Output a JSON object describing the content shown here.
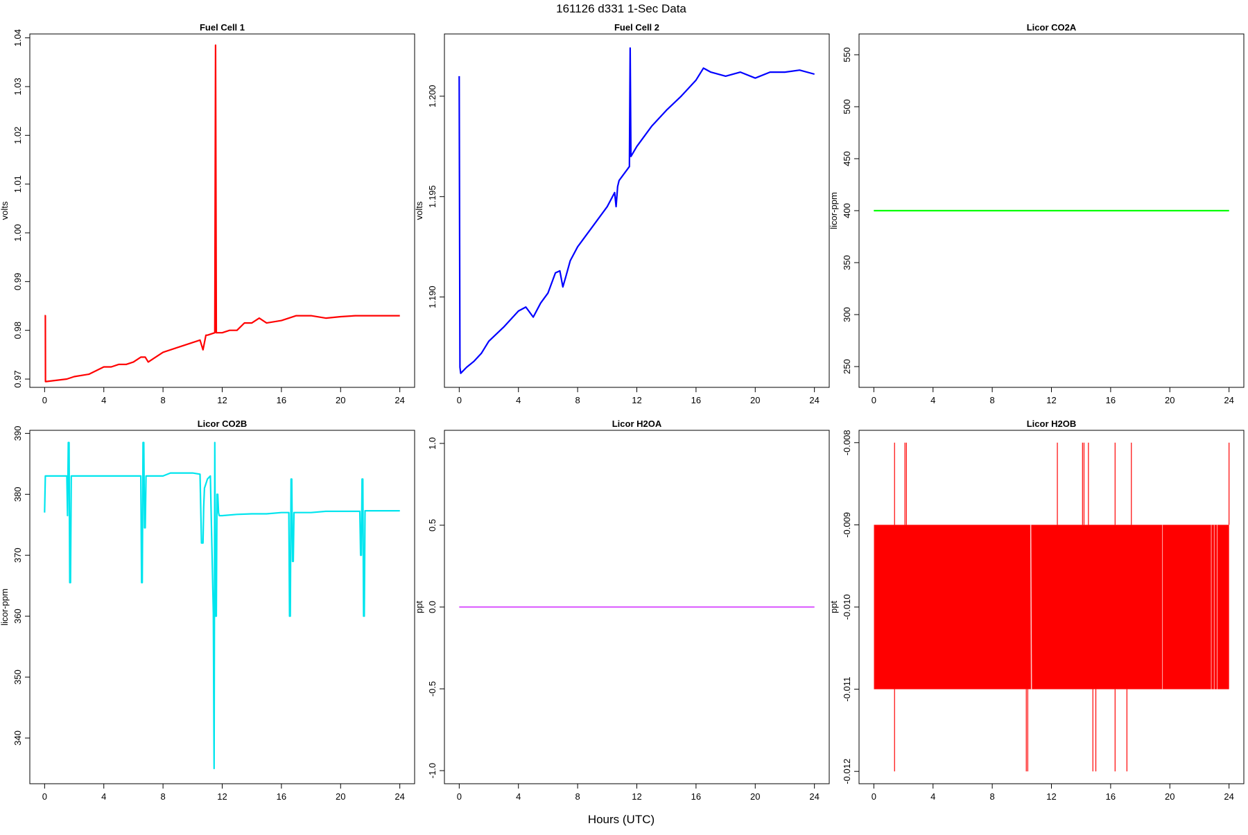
{
  "figure": {
    "title": "161126   d331   1-Sec Data",
    "xlabel": "Hours (UTC)"
  },
  "chart_data": [
    {
      "type": "line",
      "title": "Fuel Cell 1",
      "ylabel": "volts",
      "color": "#ff0000",
      "xlim": [
        -1,
        25
      ],
      "ylim": [
        0.9683,
        1.0408
      ],
      "xticks": [
        0,
        4,
        8,
        12,
        16,
        20,
        24
      ],
      "yticks": [
        0.97,
        0.98,
        0.99,
        1.0,
        1.01,
        1.02,
        1.03,
        1.04
      ],
      "ytick_labels": [
        "0.97",
        "0.98",
        "0.99",
        "1.00",
        "1.01",
        "1.02",
        "1.03",
        "1.04"
      ],
      "series": [
        {
          "x": [
            0,
            0.05,
            0.06,
            0.1,
            1.5,
            2,
            3,
            4,
            4.5,
            5,
            5.5,
            6,
            6.5,
            6.8,
            7,
            7.5,
            8,
            9,
            10,
            10.5,
            10.7,
            10.9,
            11,
            11.5,
            11.55,
            11.6,
            11.65,
            12,
            12.5,
            13,
            13.5,
            14,
            14.5,
            15,
            16,
            16.5,
            17,
            18,
            19,
            20,
            21,
            22,
            23,
            24
          ],
          "y": [
            0.983,
            0.983,
            0.9695,
            0.9695,
            0.97,
            0.9705,
            0.971,
            0.9725,
            0.9725,
            0.973,
            0.973,
            0.9735,
            0.9745,
            0.9745,
            0.9735,
            0.9745,
            0.9755,
            0.9765,
            0.9775,
            0.978,
            0.976,
            0.979,
            0.979,
            0.9795,
            1.0385,
            0.9795,
            0.9795,
            0.9795,
            0.98,
            0.98,
            0.9815,
            0.9815,
            0.9825,
            0.9815,
            0.982,
            0.9825,
            0.983,
            0.983,
            0.9825,
            0.9828,
            0.983,
            0.983,
            0.983,
            0.983
          ]
        }
      ]
    },
    {
      "type": "line",
      "title": "Fuel Cell 2",
      "ylabel": "volts",
      "color": "#0000ff",
      "xlim": [
        -1,
        25
      ],
      "ylim": [
        1.1855,
        1.2031
      ],
      "xticks": [
        0,
        4,
        8,
        12,
        16,
        20,
        24
      ],
      "yticks": [
        1.19,
        1.195,
        1.2
      ],
      "ytick_labels": [
        "1.190",
        "1.195",
        "1.200"
      ],
      "series": [
        {
          "x": [
            0,
            0.05,
            0.1,
            0.5,
            1,
            1.5,
            2,
            3,
            4,
            4.5,
            5,
            5.5,
            6,
            6.5,
            6.8,
            7,
            7.2,
            7.5,
            8,
            9,
            10,
            10.5,
            10.6,
            10.7,
            10.8,
            11,
            11.5,
            11.55,
            11.6,
            12,
            13,
            14,
            15,
            16,
            16.5,
            17,
            18,
            19,
            20,
            21,
            22,
            23,
            24
          ],
          "y": [
            1.201,
            1.1865,
            1.1862,
            1.1865,
            1.1868,
            1.1872,
            1.1878,
            1.1885,
            1.1893,
            1.1895,
            1.189,
            1.1897,
            1.1902,
            1.1912,
            1.1913,
            1.1905,
            1.191,
            1.1918,
            1.1925,
            1.1935,
            1.1945,
            1.1952,
            1.1945,
            1.1955,
            1.1958,
            1.196,
            1.1965,
            1.2024,
            1.197,
            1.1975,
            1.1985,
            1.1993,
            1.2,
            1.2008,
            1.2014,
            1.2012,
            1.201,
            1.2012,
            1.2009,
            1.2012,
            1.2012,
            1.2013,
            1.2011
          ]
        }
      ]
    },
    {
      "type": "line",
      "title": "Licor CO2A",
      "ylabel": "licor-ppm",
      "color": "#00ff00",
      "xlim": [
        -1,
        25
      ],
      "ylim": [
        230,
        570
      ],
      "xticks": [
        0,
        4,
        8,
        12,
        16,
        20,
        24
      ],
      "yticks": [
        250,
        300,
        350,
        400,
        450,
        500,
        550
      ],
      "ytick_labels": [
        "250",
        "300",
        "350",
        "400",
        "450",
        "500",
        "550"
      ],
      "series": [
        {
          "x": [
            0,
            24
          ],
          "y": [
            400,
            400
          ]
        }
      ]
    },
    {
      "type": "line",
      "title": "Licor CO2B",
      "ylabel": "licor-ppm",
      "color": "#00e5ee",
      "xlim": [
        -1,
        25
      ],
      "ylim": [
        332.5,
        390.5
      ],
      "xticks": [
        0,
        4,
        8,
        12,
        16,
        20,
        24
      ],
      "yticks": [
        340,
        350,
        360,
        370,
        380,
        390
      ],
      "ytick_labels": [
        "340",
        "350",
        "360",
        "370",
        "380",
        "390"
      ],
      "series": [
        {
          "x": [
            0,
            0.05,
            0.1,
            1.5,
            1.55,
            1.6,
            1.65,
            1.7,
            1.75,
            1.8,
            1.85,
            1.9,
            2,
            3,
            4,
            5,
            6,
            6.5,
            6.55,
            6.6,
            6.65,
            6.7,
            6.75,
            6.8,
            6.85,
            6.9,
            7,
            8,
            8.5,
            9,
            10,
            10.5,
            10.6,
            10.7,
            10.75,
            10.8,
            11,
            11.2,
            11.4,
            11.45,
            11.5,
            11.55,
            11.6,
            11.65,
            11.7,
            11.75,
            11.8,
            11.85,
            11.9,
            12,
            13,
            14,
            15,
            16,
            16.5,
            16.55,
            16.6,
            16.65,
            16.7,
            16.75,
            16.8,
            16.85,
            16.9,
            17,
            18,
            19,
            20,
            21,
            21.3,
            21.35,
            21.4,
            21.45,
            21.5,
            21.55,
            21.6,
            21.65,
            21.7,
            21.8,
            22,
            23,
            24
          ],
          "y": [
            377,
            383,
            383,
            383,
            376.5,
            388.5,
            388.5,
            365.5,
            365.5,
            383,
            383,
            383,
            383,
            383,
            383,
            383,
            383,
            383,
            365.5,
            365.5,
            388.5,
            388.5,
            374.5,
            374.5,
            383,
            383,
            383,
            383,
            383.5,
            383.5,
            383.5,
            383.3,
            372,
            372,
            378,
            381,
            382.5,
            383,
            360.5,
            335,
            388.5,
            360,
            360,
            380,
            380,
            377,
            376.5,
            376.5,
            376.5,
            376.5,
            376.7,
            376.8,
            376.8,
            377,
            377,
            360,
            360,
            382.5,
            382.5,
            369,
            369,
            377,
            377,
            377,
            377,
            377.2,
            377.2,
            377.2,
            377.2,
            370,
            370,
            382.5,
            382.5,
            360,
            360,
            377.3,
            377.3,
            377.3,
            377.3,
            377.3,
            377.3
          ]
        }
      ]
    },
    {
      "type": "line",
      "title": "Licor H2OA",
      "ylabel": "ppt",
      "color": "#dd66ff",
      "xlim": [
        -1,
        25
      ],
      "ylim": [
        -1.08,
        1.08
      ],
      "xticks": [
        0,
        4,
        8,
        12,
        16,
        20,
        24
      ],
      "yticks": [
        -1.0,
        -0.5,
        0.0,
        0.5,
        1.0
      ],
      "ytick_labels": [
        "-1.0",
        "-0.5",
        "0.0",
        "0.5",
        "1.0"
      ],
      "series": [
        {
          "x": [
            0,
            24
          ],
          "y": [
            0,
            0
          ]
        }
      ]
    },
    {
      "type": "line",
      "title": "Licor H2OB",
      "ylabel": "ppt",
      "color": "#ff0000",
      "xlim": [
        -1,
        25
      ],
      "ylim": [
        -0.01215,
        -0.00785
      ],
      "xticks": [
        0,
        4,
        8,
        12,
        16,
        20,
        24
      ],
      "yticks": [
        -0.012,
        -0.011,
        -0.01,
        -0.009,
        -0.008
      ],
      "ytick_labels": [
        "-0.012",
        "-0.011",
        "-0.010",
        "-0.009",
        "-0.008"
      ],
      "band": {
        "x_start": 0,
        "x_end": 24,
        "y_low": -0.011,
        "y_high": -0.009
      },
      "spikes_up": [
        1.4,
        2.1,
        2.2,
        12.4,
        14.1,
        14.2,
        14.5,
        16.3,
        17.4,
        24
      ],
      "spikes_down": [
        1.4,
        10.3,
        10.4,
        14.8,
        15.0,
        16.3,
        17.1
      ],
      "midline_gaps": [
        0,
        19.5,
        22.8,
        23.0,
        23.2
      ]
    }
  ]
}
